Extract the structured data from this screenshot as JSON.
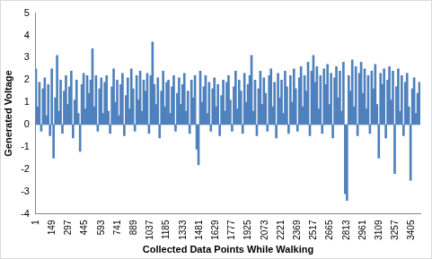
{
  "chart_data": {
    "type": "bar",
    "x_label": "Collected Data Points While Walking",
    "y_label": "Generated Voltage",
    "color": "#4f81bd",
    "grid": false,
    "x": [
      1,
      17,
      33,
      49,
      65,
      81,
      97,
      113,
      129,
      145,
      161,
      177,
      193,
      209,
      225,
      241,
      257,
      273,
      289,
      305,
      321,
      337,
      353,
      369,
      385,
      401,
      417,
      433,
      449,
      465,
      481,
      497,
      513,
      529,
      545,
      561,
      577,
      593,
      609,
      625,
      641,
      657,
      673,
      689,
      705,
      721,
      737,
      753,
      769,
      785,
      801,
      817,
      833,
      849,
      865,
      881,
      897,
      913,
      929,
      945,
      961,
      977,
      993,
      1009,
      1025,
      1041,
      1057,
      1073,
      1089,
      1105,
      1121,
      1137,
      1153,
      1169,
      1185,
      1201,
      1217,
      1233,
      1249,
      1265,
      1281,
      1297,
      1313,
      1329,
      1345,
      1361,
      1377,
      1393,
      1409,
      1425,
      1441,
      1457,
      1473,
      1489,
      1505,
      1521,
      1537,
      1553,
      1569,
      1585,
      1601,
      1617,
      1633,
      1649,
      1665,
      1681,
      1697,
      1713,
      1729,
      1745,
      1761,
      1777,
      1793,
      1809,
      1825,
      1841,
      1857,
      1873,
      1889,
      1905,
      1921,
      1937,
      1953,
      1969,
      1985,
      2001,
      2017,
      2033,
      2049,
      2065,
      2081,
      2097,
      2113,
      2129,
      2145,
      2161,
      2177,
      2193,
      2209,
      2225,
      2241,
      2257,
      2273,
      2289,
      2305,
      2321,
      2337,
      2353,
      2369,
      2385,
      2401,
      2417,
      2433,
      2449,
      2465,
      2481,
      2497,
      2513,
      2529,
      2545,
      2561,
      2577,
      2593,
      2609,
      2625,
      2641,
      2657,
      2673,
      2689,
      2705,
      2721,
      2737,
      2753,
      2769,
      2785,
      2801,
      2817,
      2833,
      2849,
      2865,
      2881,
      2897,
      2913,
      2929,
      2945,
      2961,
      2977,
      2993,
      3009,
      3025,
      3041,
      3057,
      3073,
      3089,
      3105,
      3121,
      3137,
      3153,
      3169,
      3185,
      3201,
      3217,
      3233,
      3249,
      3265,
      3281,
      3297,
      3313,
      3329,
      3345,
      3361,
      3377,
      3393,
      3409,
      3425,
      3441,
      3457,
      3473
    ],
    "values": [
      2.5,
      0.8,
      1.9,
      -0.3,
      1.6,
      2.1,
      0.4,
      1.8,
      -0.5,
      2.5,
      -1.5,
      1.2,
      3.1,
      0.6,
      2.0,
      -0.4,
      1.5,
      2.2,
      0.9,
      1.7,
      2.4,
      -0.6,
      1.1,
      2.0,
      0.5,
      -1.2,
      1.8,
      2.3,
      0.7,
      2.2,
      1.4,
      2.0,
      3.4,
      0.8,
      2.2,
      -0.3,
      1.6,
      2.1,
      0.5,
      1.9,
      2.2,
      0.6,
      -0.4,
      1.7,
      2.5,
      1.0,
      2.0,
      0.4,
      1.8,
      2.3,
      -0.5,
      1.3,
      2.1,
      0.7,
      2.5,
      1.6,
      -0.3,
      2.2,
      1.1,
      2.4,
      0.6,
      2.0,
      1.5,
      2.3,
      -0.4,
      2.2,
      3.7,
      1.8,
      0.9,
      2.1,
      -0.6,
      1.5,
      2.4,
      0.8,
      1.9,
      2.0,
      0.5,
      1.7,
      2.2,
      -0.3,
      1.4,
      2.1,
      0.9,
      1.8,
      2.3,
      0.6,
      1.5,
      -0.4,
      2.0,
      1.2,
      2.2,
      -1.1,
      -1.8,
      2.4,
      1.0,
      1.7,
      2.2,
      0.5,
      1.9,
      -0.3,
      1.6,
      2.1,
      0.8,
      1.8,
      -0.5,
      1.3,
      2.0,
      0.6,
      1.9,
      2.2,
      1.1,
      -0.3,
      1.7,
      2.4,
      0.7,
      2.0,
      1.5,
      -0.4,
      2.3,
      1.0,
      1.8,
      2.2,
      3.1,
      0.6,
      2.0,
      -0.5,
      1.6,
      2.4,
      0.9,
      2.1,
      1.4,
      -0.3,
      2.2,
      2.5,
      0.8,
      1.9,
      -0.6,
      2.3,
      1.2,
      2.0,
      0.5,
      2.4,
      1.7,
      -0.4,
      2.2,
      1.0,
      2.5,
      1.6,
      -0.3,
      2.1,
      2.6,
      0.8,
      2.2,
      1.5,
      2.8,
      -0.5,
      2.4,
      3.1,
      1.9,
      2.6,
      0.7,
      2.2,
      -0.4,
      2.5,
      1.8,
      2.7,
      0.9,
      2.3,
      -0.6,
      2.1,
      2.6,
      1.2,
      2.4,
      0.6,
      2.8,
      -3.1,
      -3.4,
      2.2,
      1.5,
      2.9,
      0.8,
      2.6,
      -0.5,
      2.3,
      2.8,
      1.4,
      2.5,
      0.7,
      2.2,
      -0.4,
      2.4,
      1.6,
      2.7,
      0.9,
      -1.5,
      2.3,
      1.8,
      2.5,
      -0.6,
      2.0,
      2.6,
      1.1,
      2.4,
      -2.2,
      1.7,
      2.5,
      0.6,
      2.2,
      -0.5,
      1.9,
      2.3,
      0.8,
      -2.5,
      1.6,
      2.1,
      0.5,
      1.4,
      1.9
    ],
    "xlim": [
      1,
      3481
    ],
    "xticks": [
      1,
      149,
      297,
      445,
      593,
      741,
      889,
      1037,
      1185,
      1333,
      1481,
      1629,
      1777,
      1925,
      2073,
      2221,
      2369,
      2517,
      2665,
      2813,
      2961,
      3109,
      3257,
      3405
    ],
    "ylim": [
      -4,
      5
    ],
    "yticks": [
      -4,
      -3,
      -2,
      -1,
      0,
      1,
      2,
      3,
      4,
      5
    ]
  }
}
